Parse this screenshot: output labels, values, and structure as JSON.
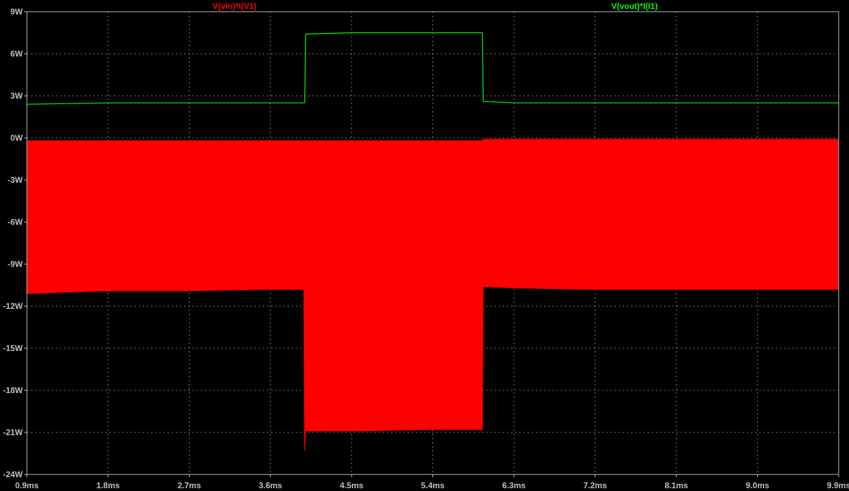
{
  "chart_data": {
    "type": "line",
    "title": "",
    "xlabel": "",
    "ylabel": "",
    "background": "#000000",
    "axis_color": "#c0c0c0",
    "grid": true,
    "grid_color": "#808080",
    "xlim": [
      0.9,
      9.9
    ],
    "ylim": [
      -24,
      9
    ],
    "x_ticks": [
      0.9,
      1.8,
      2.7,
      3.6,
      4.5,
      5.4,
      6.3,
      7.2,
      8.1,
      9.0,
      9.9
    ],
    "x_tick_labels": [
      "0.9ms",
      "1.8ms",
      "2.7ms",
      "3.6ms",
      "4.5ms",
      "5.4ms",
      "6.3ms",
      "7.2ms",
      "8.1ms",
      "9.0ms",
      "9.9ms"
    ],
    "y_ticks": [
      9,
      6,
      3,
      0,
      -3,
      -6,
      -9,
      -12,
      -15,
      -18,
      -21,
      -24
    ],
    "y_tick_labels": [
      "9W",
      "6W",
      "3W",
      "0W",
      "-3W",
      "-6W",
      "-9W",
      "-12W",
      "-15W",
      "-18W",
      "-21W",
      "-24W"
    ],
    "series": [
      {
        "name": "V(vin)*I(V1)",
        "color": "#ff0000",
        "render": "band",
        "x": [
          0.9,
          1.8,
          2.7,
          3.6,
          3.97,
          3.98,
          3.99,
          4.0,
          4.5,
          5.4,
          5.95,
          5.96,
          6.3,
          7.2,
          8.1,
          9.0,
          9.9
        ],
        "y_upper": [
          -0.2,
          -0.2,
          -0.2,
          -0.2,
          -0.2,
          -0.2,
          -0.2,
          -0.2,
          -0.2,
          -0.2,
          -0.2,
          -0.1,
          -0.1,
          -0.1,
          -0.1,
          -0.1,
          -0.1
        ],
        "y_lower": [
          -11.1,
          -10.9,
          -10.9,
          -10.8,
          -10.8,
          -22.3,
          -20.8,
          -20.9,
          -20.9,
          -20.8,
          -20.8,
          -10.6,
          -10.7,
          -10.8,
          -10.8,
          -10.8,
          -10.8
        ]
      },
      {
        "name": "V(vout)*I(I1)",
        "color": "#00ff00",
        "render": "line",
        "x": [
          0.9,
          1.8,
          2.7,
          3.6,
          3.98,
          3.99,
          4.5,
          5.4,
          5.95,
          5.96,
          6.3,
          7.2,
          8.1,
          9.0,
          9.9
        ],
        "y": [
          2.4,
          2.5,
          2.5,
          2.5,
          2.5,
          7.4,
          7.5,
          7.5,
          7.5,
          2.6,
          2.5,
          2.5,
          2.5,
          2.5,
          2.5
        ]
      }
    ]
  }
}
